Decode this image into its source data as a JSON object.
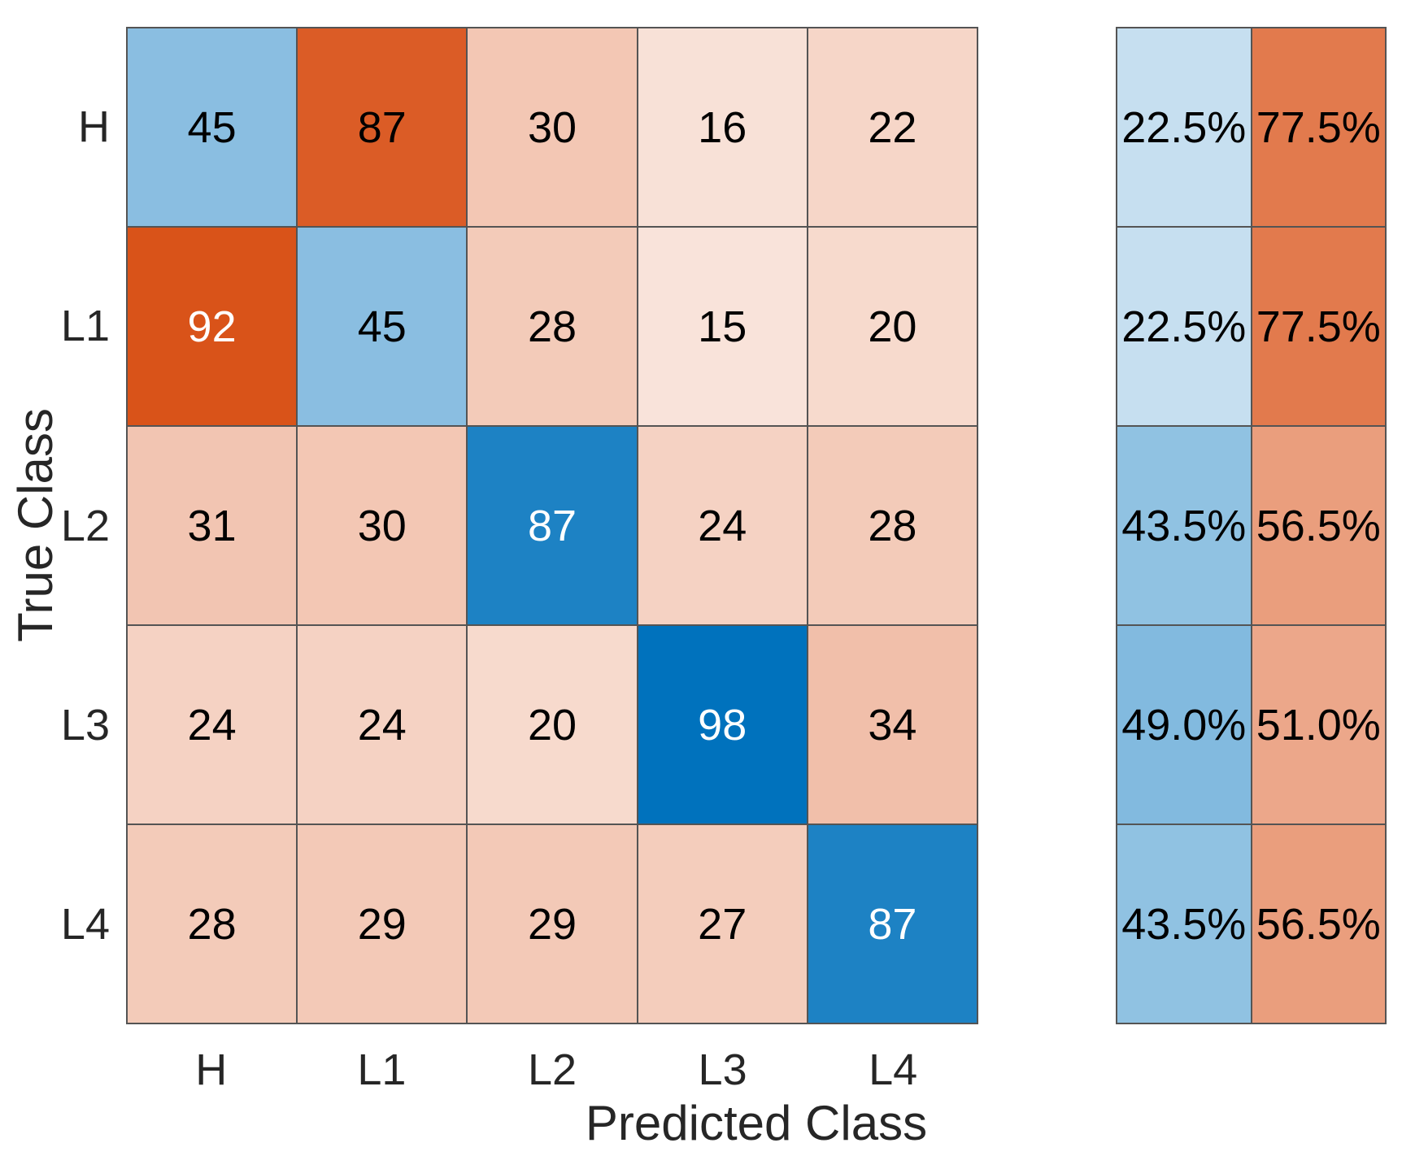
{
  "chart_data": {
    "type": "heatmap",
    "subtype": "confusion-matrix-with-row-summary",
    "title": "",
    "xlabel": "Predicted Class",
    "ylabel": "True Class",
    "classes": [
      "H",
      "L1",
      "L2",
      "L3",
      "L4"
    ],
    "matrix": [
      [
        45,
        87,
        30,
        16,
        22
      ],
      [
        92,
        45,
        28,
        15,
        20
      ],
      [
        31,
        30,
        87,
        24,
        28
      ],
      [
        24,
        24,
        20,
        98,
        34
      ],
      [
        28,
        29,
        29,
        27,
        87
      ]
    ],
    "row_summary": {
      "true_positive_rate_labels": [
        "22.5%",
        "22.5%",
        "43.5%",
        "49.0%",
        "43.5%"
      ],
      "false_negative_rate_labels": [
        "77.5%",
        "77.5%",
        "56.5%",
        "51.0%",
        "56.5%"
      ],
      "true_positive_rate_values": [
        22.5,
        22.5,
        43.5,
        49.0,
        43.5
      ],
      "false_negative_rate_values": [
        77.5,
        77.5,
        56.5,
        51.0,
        56.5
      ]
    },
    "colors": {
      "diagonal_base": "#0072bd",
      "off_diagonal_base": "#d95319",
      "grid_line": "#545454",
      "text_dark": "#000000",
      "text_light": "#ffffff",
      "axis_text": "#262626",
      "background": "#ffffff"
    },
    "layout": {
      "legend": "none",
      "grid": "on",
      "row_summary_position": "right"
    }
  }
}
